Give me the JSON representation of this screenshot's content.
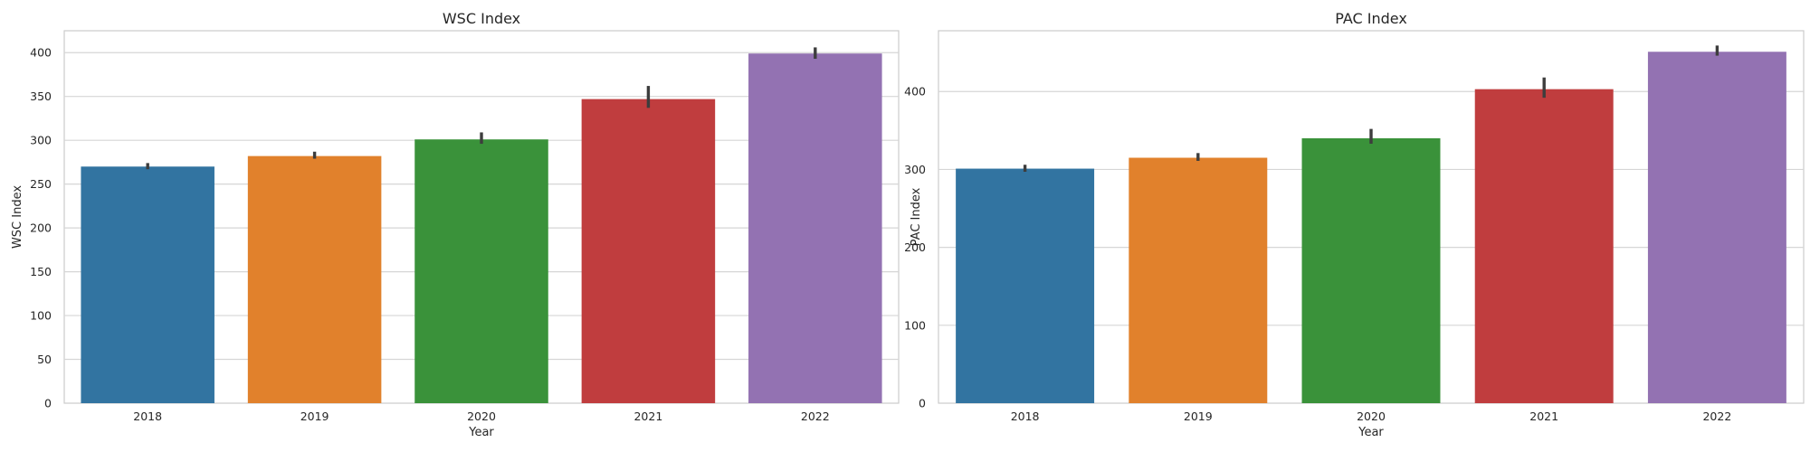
{
  "chart_data": [
    {
      "type": "bar",
      "title": "WSC Index",
      "xlabel": "Year",
      "ylabel": "WSC Index",
      "categories": [
        "2018",
        "2019",
        "2020",
        "2021",
        "2022"
      ],
      "values": [
        270,
        282,
        301,
        347,
        399
      ],
      "error_low": [
        267,
        279,
        296,
        337,
        393
      ],
      "error_high": [
        274,
        287,
        309,
        362,
        406
      ],
      "ylim": [
        0,
        425
      ],
      "yticks": [
        0,
        50,
        100,
        150,
        200,
        250,
        300,
        350,
        400
      ],
      "colors": [
        "#3274a1",
        "#e1812c",
        "#3a923a",
        "#c03d3e",
        "#9372b2"
      ],
      "grid": true
    },
    {
      "type": "bar",
      "title": "PAC Index",
      "xlabel": "Year",
      "ylabel": "PAC Index",
      "categories": [
        "2018",
        "2019",
        "2020",
        "2021",
        "2022"
      ],
      "values": [
        301,
        315,
        340,
        403,
        451
      ],
      "error_low": [
        297,
        311,
        333,
        392,
        446
      ],
      "error_high": [
        306,
        321,
        352,
        418,
        459
      ],
      "ylim": [
        0,
        478
      ],
      "yticks": [
        0,
        100,
        200,
        300,
        400
      ],
      "colors": [
        "#3274a1",
        "#e1812c",
        "#3a923a",
        "#c03d3e",
        "#9372b2"
      ],
      "grid": true
    }
  ]
}
